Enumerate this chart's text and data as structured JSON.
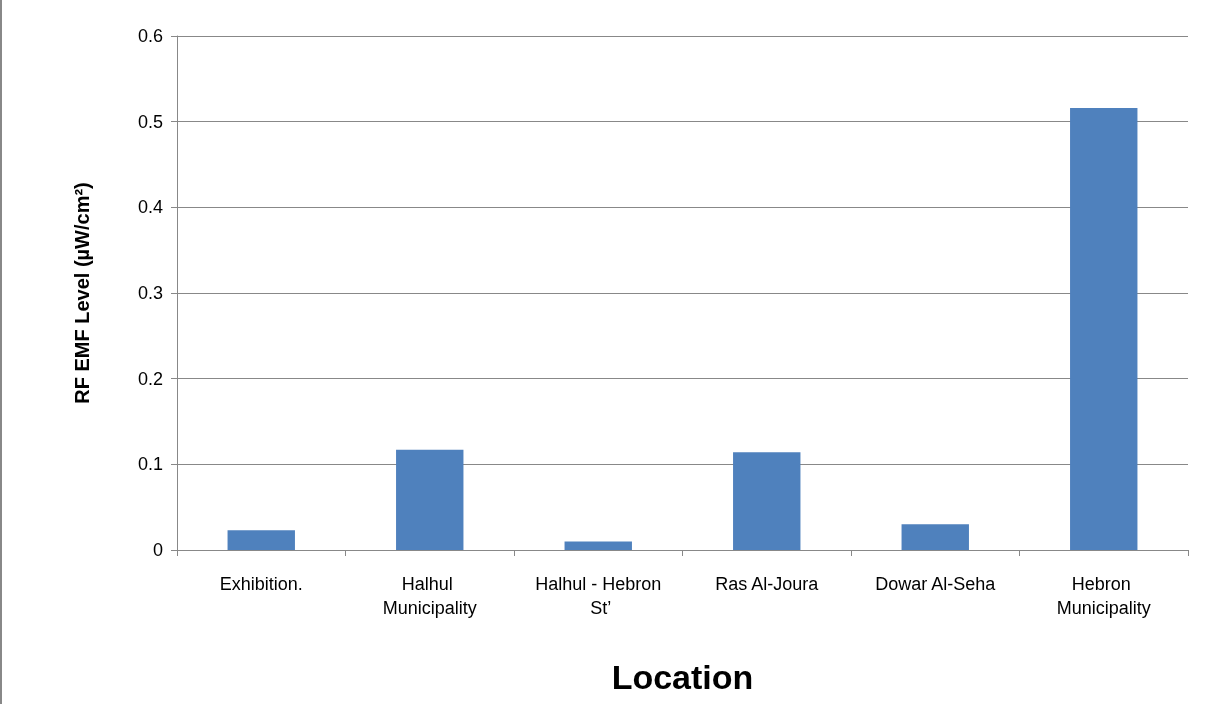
{
  "chart_data": {
    "type": "bar",
    "xlabel": "Location",
    "ylabel": "RF EMF Level (µW/cm²)",
    "categories": [
      "Exhibition.",
      "Halhul Municipality",
      "Halhul - Hebron St’",
      "Ras Al-Joura",
      "Dowar Al-Seha",
      "Hebron Municipality"
    ],
    "values": [
      0.023,
      0.117,
      0.01,
      0.114,
      0.03,
      0.516
    ],
    "color": "#4f81bd",
    "ylim": [
      0,
      0.6
    ],
    "yticks": [
      0,
      0.1,
      0.2,
      0.3,
      0.4,
      0.5,
      0.6
    ],
    "grid": "y"
  }
}
